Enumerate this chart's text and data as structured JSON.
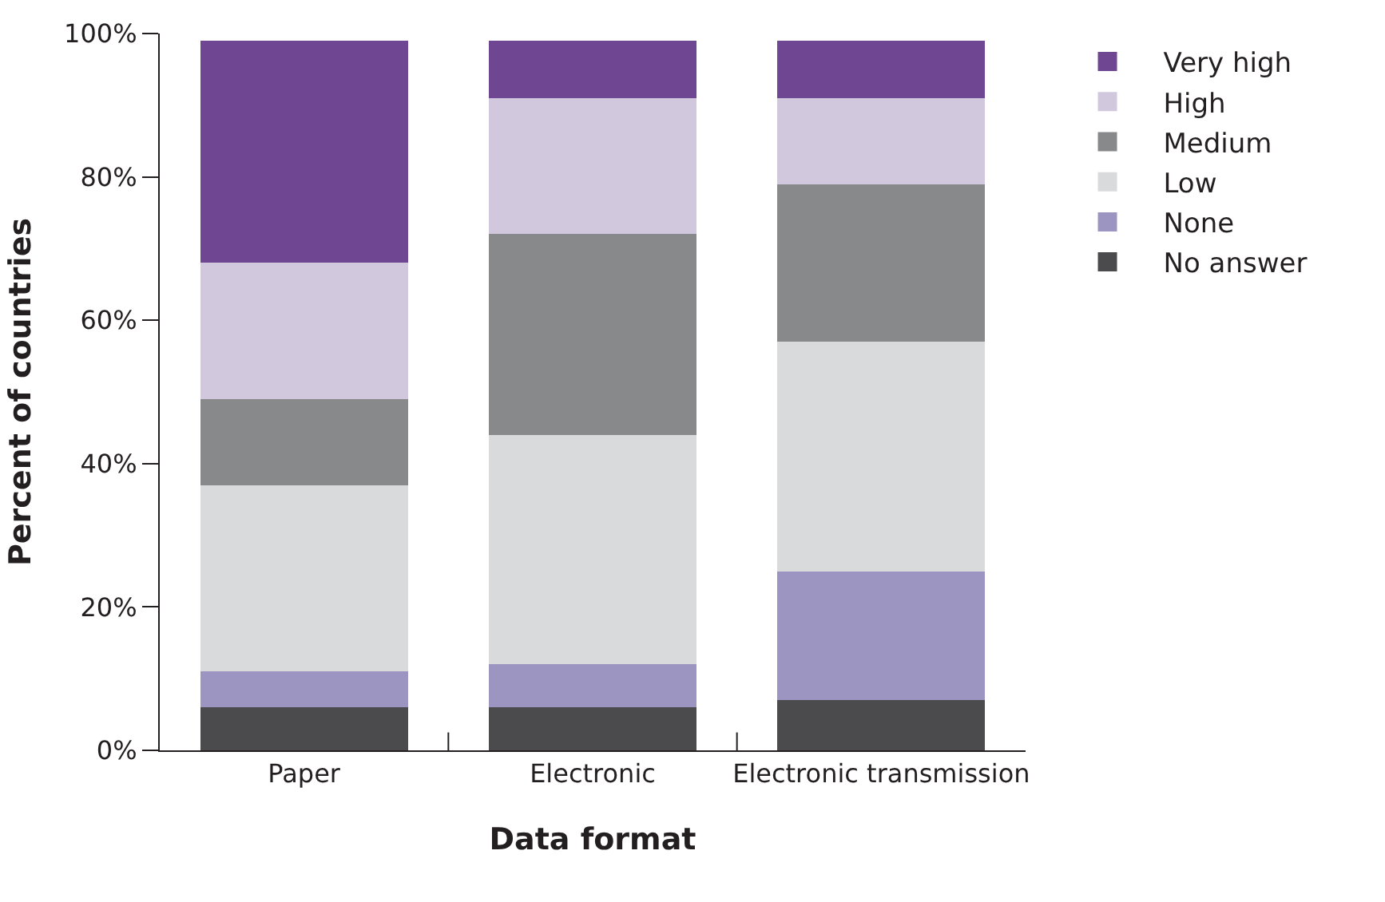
{
  "chart_data": {
    "type": "bar",
    "stacked": true,
    "xlabel": "Data format",
    "ylabel": "Percent of countries",
    "categories": [
      "Paper",
      "Electronic",
      "Electronic transmission"
    ],
    "series": [
      {
        "name": "No answer",
        "color": "#4b4b4d",
        "values": [
          6,
          6,
          7
        ]
      },
      {
        "name": "None",
        "color": "#9d95c1",
        "values": [
          5,
          6,
          18
        ]
      },
      {
        "name": "Low",
        "color": "#d9dadc",
        "values": [
          26,
          32,
          32
        ]
      },
      {
        "name": "Medium",
        "color": "#88898b",
        "values": [
          12,
          28,
          22
        ]
      },
      {
        "name": "High",
        "color": "#d2c8de",
        "values": [
          19,
          19,
          12
        ]
      },
      {
        "name": "Very high",
        "color": "#6f4691",
        "values": [
          31,
          8,
          8
        ]
      }
    ],
    "ylim": [
      0,
      100
    ],
    "yticks": [
      {
        "value": 0,
        "label": "0%"
      },
      {
        "value": 20,
        "label": "20%"
      },
      {
        "value": 40,
        "label": "40%"
      },
      {
        "value": 60,
        "label": "60%"
      },
      {
        "value": 80,
        "label": "80%"
      },
      {
        "value": 100,
        "label": "100%"
      }
    ],
    "legend": "right"
  }
}
